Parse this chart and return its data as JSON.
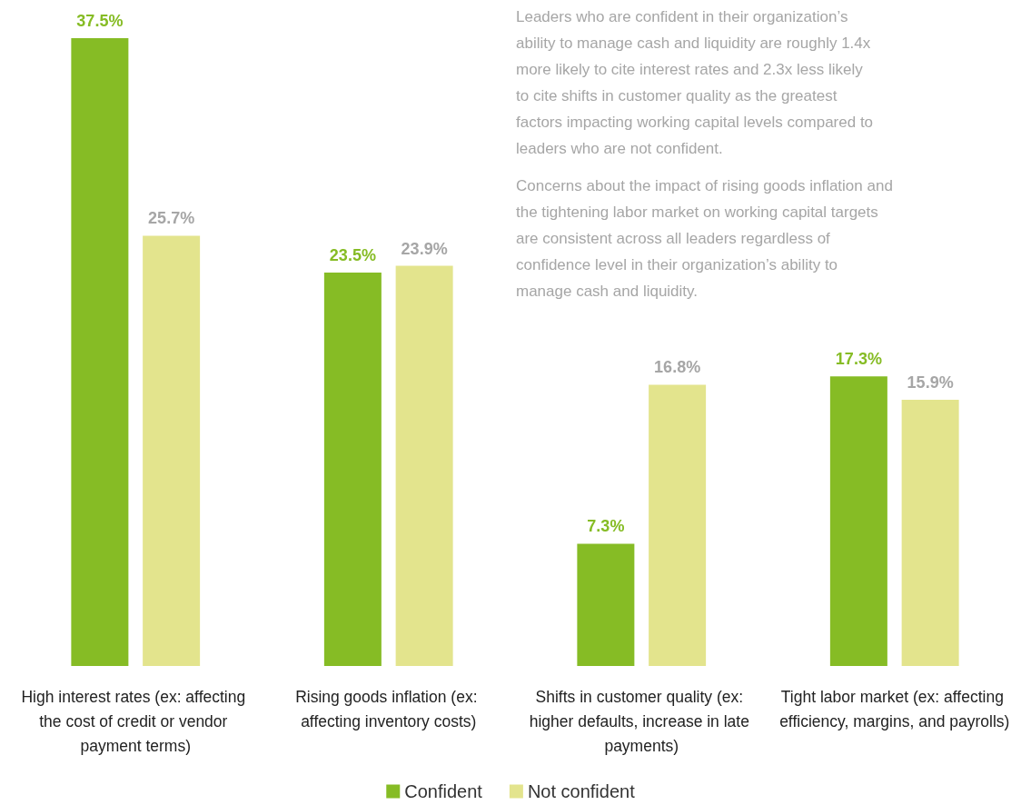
{
  "chart_data": {
    "type": "bar",
    "categories": [
      "High interest rates (ex: affecting the cost of credit or vendor payment terms)",
      "Rising goods inflation (ex: affecting inventory costs)",
      "Shifts in customer quality (ex: higher defaults, increase in late payments)",
      "Tight labor market (ex: affecting efficiency, margins, and payrolls)"
    ],
    "series": [
      {
        "name": "Confident",
        "color": "#86bc25",
        "values": [
          37.5,
          23.5,
          7.3,
          17.3
        ],
        "value_labels": [
          "37.5%",
          "23.5%",
          "7.3%",
          "17.3%"
        ]
      },
      {
        "name": "Not confident",
        "color": "#e3e48d",
        "values": [
          25.7,
          23.9,
          16.8,
          15.9
        ],
        "value_labels": [
          "25.7%",
          "23.9%",
          "16.8%",
          "15.9%"
        ]
      }
    ],
    "legend": "bottom",
    "annotations": [
      "Leaders who are confident in their organization’s ability to manage cash and liquidity are roughly 1.4x more likely to cite interest rates and 2.3x less likely to cite shifts in customer quality as the greatest factors impacting working capital levels compared to leaders who are not confident.",
      "Concerns about the impact of rising goods inflation and the tightening labor market on working capital targets are consistent across all leaders regardless of confidence level in their organization’s ability to manage cash and liquidity."
    ]
  }
}
